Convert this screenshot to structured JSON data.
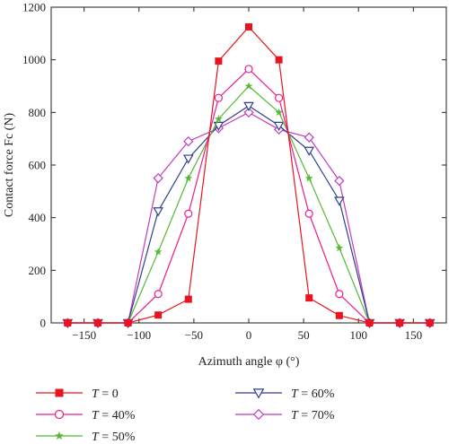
{
  "chart_data": {
    "type": "line",
    "xlabel": "Azimuth angle φ (°)",
    "ylabel": "Contact force Fc (N)",
    "xlim": [
      -180,
      180
    ],
    "ylim": [
      0,
      1200
    ],
    "xticks": [
      -150,
      -100,
      -50,
      0,
      50,
      100,
      150
    ],
    "yticks": [
      0,
      200,
      400,
      600,
      800,
      1000,
      1200
    ],
    "x": [
      -165,
      -137.5,
      -110,
      -82.5,
      -55,
      -27.5,
      0,
      27.5,
      55,
      82.5,
      110,
      137.5,
      165
    ],
    "series": [
      {
        "name": "T = 0",
        "name_italic": "T",
        "name_rest": " = 0",
        "color": "#e8141e",
        "marker": "square-filled",
        "values": [
          0,
          0,
          0,
          30,
          90,
          995,
          1125,
          1000,
          95,
          28,
          0,
          0,
          0
        ]
      },
      {
        "name": "T = 40%",
        "name_italic": "T",
        "name_rest": " = 40%",
        "color": "#ec1c8c",
        "marker": "circle-open",
        "values": [
          0,
          0,
          0,
          110,
          415,
          855,
          965,
          855,
          415,
          110,
          0,
          0,
          0
        ]
      },
      {
        "name": "T = 50%",
        "name_italic": "T",
        "name_rest": " = 50%",
        "color": "#55b935",
        "marker": "star-filled",
        "values": [
          0,
          0,
          0,
          270,
          550,
          775,
          900,
          800,
          550,
          285,
          0,
          0,
          0
        ]
      },
      {
        "name": "T = 60%",
        "name_italic": "T",
        "name_rest": " = 60%",
        "color": "#2f3f8f",
        "marker": "triangle-down-open",
        "values": [
          0,
          0,
          0,
          425,
          625,
          750,
          825,
          750,
          655,
          465,
          0,
          0,
          0
        ]
      },
      {
        "name": "T = 70%",
        "name_italic": "T",
        "name_rest": " = 70%",
        "color": "#c23bbf",
        "marker": "diamond-open",
        "values": [
          0,
          0,
          0,
          550,
          690,
          740,
          800,
          735,
          705,
          540,
          0,
          0,
          0
        ]
      }
    ],
    "legend_placement": "bottom"
  }
}
